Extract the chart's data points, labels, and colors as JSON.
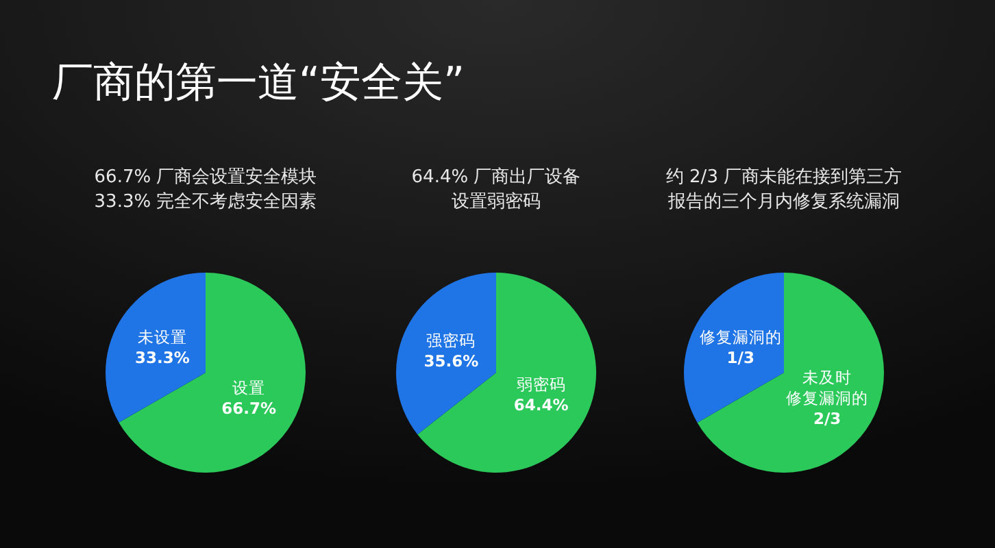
{
  "chart_data": [
    {
      "type": "pie",
      "title": "厂商的第一道“安全关”",
      "annotations": [
        "66.7% 厂商会设置安全模块",
        "33.3% 完全不考虑安全因素"
      ],
      "categories": [
        "设置",
        "未设置"
      ],
      "values": [
        66.7,
        33.3
      ],
      "value_labels": [
        "66.7%",
        "33.3%"
      ],
      "colors": [
        "#2bc85a",
        "#1f74e6"
      ]
    },
    {
      "type": "pie",
      "annotations": [
        "64.4% 厂商出厂设备",
        "设置弱密码"
      ],
      "categories": [
        "弱密码",
        "强密码"
      ],
      "values": [
        64.4,
        35.6
      ],
      "value_labels": [
        "64.4%",
        "35.6%"
      ],
      "colors": [
        "#2bc85a",
        "#1f74e6"
      ]
    },
    {
      "type": "pie",
      "annotations": [
        "约 2/3 厂商未能在接到第三方",
        "报告的三个月内修复系统漏洞"
      ],
      "categories": [
        "未及时修复漏洞的",
        "修复漏洞的"
      ],
      "values": [
        0.6667,
        0.3333
      ],
      "value_labels": [
        "2/3",
        "1/3"
      ],
      "colors": [
        "#2bc85a",
        "#1f74e6"
      ]
    }
  ]
}
